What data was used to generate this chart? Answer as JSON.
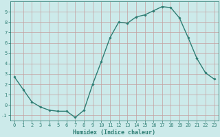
{
  "x": [
    0,
    1,
    2,
    3,
    4,
    5,
    6,
    7,
    8,
    9,
    10,
    11,
    12,
    13,
    14,
    15,
    16,
    17,
    18,
    19,
    20,
    21,
    22,
    23
  ],
  "y": [
    2.7,
    1.5,
    0.3,
    -0.2,
    -0.5,
    -0.6,
    -0.6,
    -1.2,
    -0.5,
    2.0,
    4.2,
    6.5,
    8.0,
    7.9,
    8.5,
    8.7,
    9.1,
    9.5,
    9.4,
    8.4,
    6.5,
    4.5,
    3.1,
    2.5
  ],
  "line_color": "#2d7d73",
  "marker": "D",
  "marker_size": 1.8,
  "bg_color": "#cceaea",
  "grid_color_minor": "#cceaea",
  "grid_color_major": "#c4a0a0",
  "xlabel": "Humidex (Indice chaleur)",
  "ylim": [
    -1.5,
    10.0
  ],
  "xlim": [
    -0.5,
    23.5
  ],
  "yticks": [
    -1,
    0,
    1,
    2,
    3,
    4,
    5,
    6,
    7,
    8,
    9
  ],
  "xticks": [
    0,
    1,
    2,
    3,
    4,
    5,
    6,
    7,
    8,
    9,
    10,
    11,
    12,
    13,
    14,
    15,
    16,
    17,
    18,
    19,
    20,
    21,
    22,
    23
  ],
  "line_width": 1.0,
  "tick_fontsize": 5.0,
  "xlabel_fontsize": 6.0
}
